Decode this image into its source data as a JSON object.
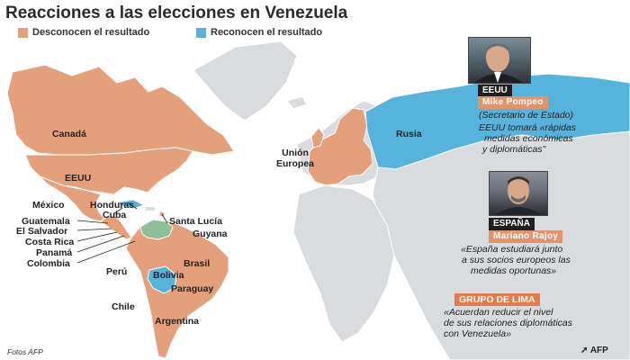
{
  "title": "Reacciones a las elecciones en Venezuela",
  "legend": [
    {
      "label": "Desconocen el resultado",
      "color": "#e4a07b"
    },
    {
      "label": "Reconocen el resultado",
      "color": "#56b3dc"
    }
  ],
  "colors": {
    "ocean": "#ffffff",
    "land_other": "#d9dcde",
    "reject": "#e4a07b",
    "recognize": "#56b3dc",
    "venezuela": "#8fbf96",
    "border": "#ffffff"
  },
  "map_labels": {
    "canada": "Canadá",
    "eeuu": "EEUU",
    "mexico": "México",
    "honduras": "Honduras",
    "cuba": "Cuba",
    "guatemala": "Guatemala",
    "el_salvador": "El Salvador",
    "costa_rica": "Costa Rica",
    "panama": "Panamá",
    "colombia": "Colombia",
    "santa_lucia": "Santa Lucía",
    "guyana": "Guyana",
    "peru": "Perú",
    "brasil": "Brasil",
    "bolivia": "Bolivia",
    "paraguay": "Paraguay",
    "chile": "Chile",
    "argentina": "Argentina",
    "union_europea": "Unión Europea",
    "rusia": "Rusia"
  },
  "panels": {
    "eeuu": {
      "country": "EEUU",
      "person": "Mike Pompeo",
      "role": "(Secretario de Estado)",
      "quote_lines": [
        "EEUU tomará «rápidas",
        "medidas económicas",
        "y diplomáticas\""
      ]
    },
    "espana": {
      "country": "ESPAÑA",
      "person": "Mariano Rajoy",
      "quote_lines": [
        "«España estudiará junto",
        "a sus socios europeos las",
        "medidas oportunas»"
      ]
    },
    "lima": {
      "group": "GRUPO DE LIMA",
      "quote_lines": [
        "«Acuerdan reducir el nivel",
        "de sus relaciones diplomáticas",
        "con Venezuela»"
      ]
    }
  },
  "credit": "Fotos AFP",
  "agency": "AFP"
}
